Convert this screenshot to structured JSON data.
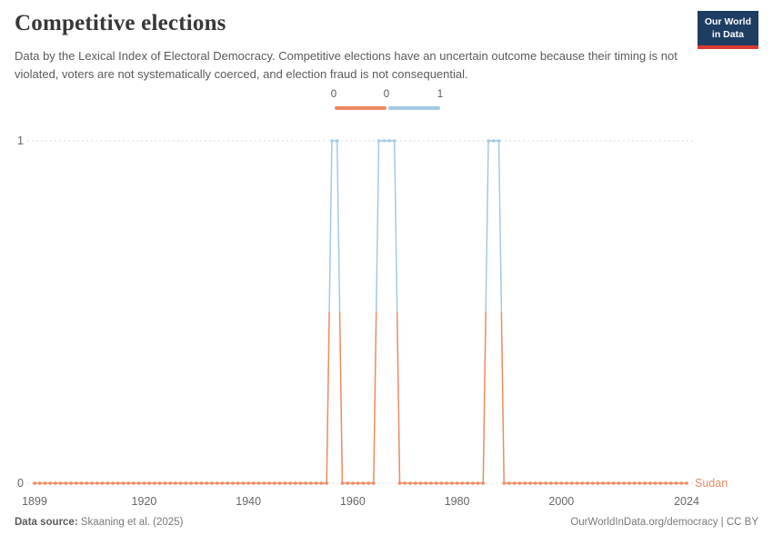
{
  "header": {
    "title": "Competitive elections",
    "subtitle": "Data by the Lexical Index of Electoral Democracy. Competitive elections have an uncertain outcome because their timing is not violated, voters are not systematically coerced, and election fraud is not consequential.",
    "logo": {
      "line1": "Our World",
      "line2": "in Data"
    }
  },
  "legend": {
    "labels": [
      "0",
      "0",
      "1"
    ]
  },
  "chart_data": {
    "type": "line",
    "title": "Competitive elections",
    "entity": "Sudan",
    "x_start": 1899,
    "x_end": 2024,
    "x_ticks": [
      1899,
      1920,
      1940,
      1960,
      1980,
      2000,
      2024
    ],
    "y_ticks": [
      0,
      1
    ],
    "ylim": [
      0,
      1
    ],
    "gridline_values": [
      0,
      1
    ],
    "legend_position": "top-center",
    "series": [
      {
        "name": "Sudan",
        "value_default": 0,
        "value_1_ranges": [
          [
            1956,
            1957
          ],
          [
            1965,
            1968
          ],
          [
            1986,
            1988
          ]
        ],
        "note": "Annual binary values 1899-2024; value is 0 every year except the listed ranges where it is 1."
      }
    ],
    "value_colors": {
      "0": "#ED8A63",
      "1": "#A4C9E3"
    },
    "gridline_color": "#dcdcdc",
    "tick_label_color": "#666666"
  },
  "footer": {
    "source_label": "Data source:",
    "source_value": "Skaaning et al. (2025)",
    "credit": "OurWorldInData.org/democracy | CC BY"
  }
}
